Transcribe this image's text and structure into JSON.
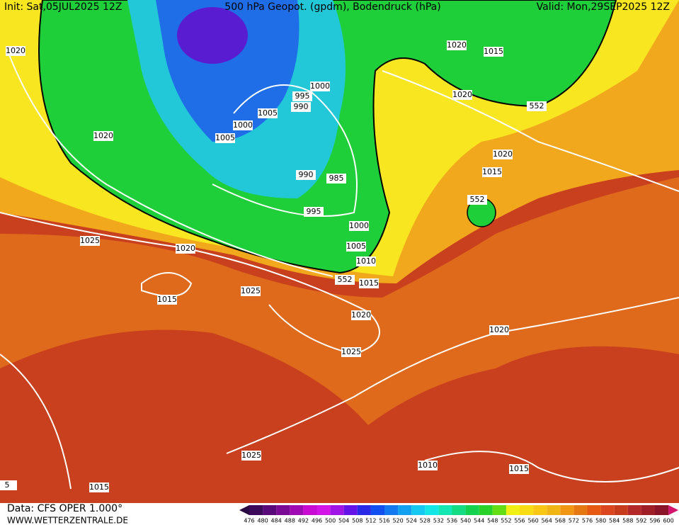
{
  "header": {
    "init": "Init: Sat,05JUL2025 12Z",
    "title": "500 hPa Geopot. (gpdm), Bodendruck (hPa)",
    "valid": "Valid: Mon,29SEP2025 12Z"
  },
  "isobar_labels": [
    "1020",
    "1020",
    "1025",
    "1020",
    "1015",
    "1025",
    "1005",
    "1000",
    "1005",
    "995",
    "990",
    "1000",
    "990",
    "985",
    "995",
    "1000",
    "1005",
    "1010",
    "552",
    "1015",
    "1020",
    "1025",
    "1020",
    "1015",
    "1020",
    "552",
    "1020",
    "1015",
    "552",
    "1020",
    "1010",
    "1015",
    "1025",
    "1015",
    "5"
  ],
  "footer": {
    "data": "Data: CFS OPER 1.000°",
    "site": "WWW.WETTERZENTRALE.DE"
  },
  "colorbar_labels": [
    "476",
    "480",
    "484",
    "488",
    "492",
    "496",
    "500",
    "504",
    "508",
    "512",
    "516",
    "520",
    "524",
    "528",
    "532",
    "536",
    "540",
    "544",
    "548",
    "552",
    "556",
    "560",
    "564",
    "568",
    "572",
    "576",
    "580",
    "584",
    "588",
    "592",
    "596",
    "600"
  ]
}
